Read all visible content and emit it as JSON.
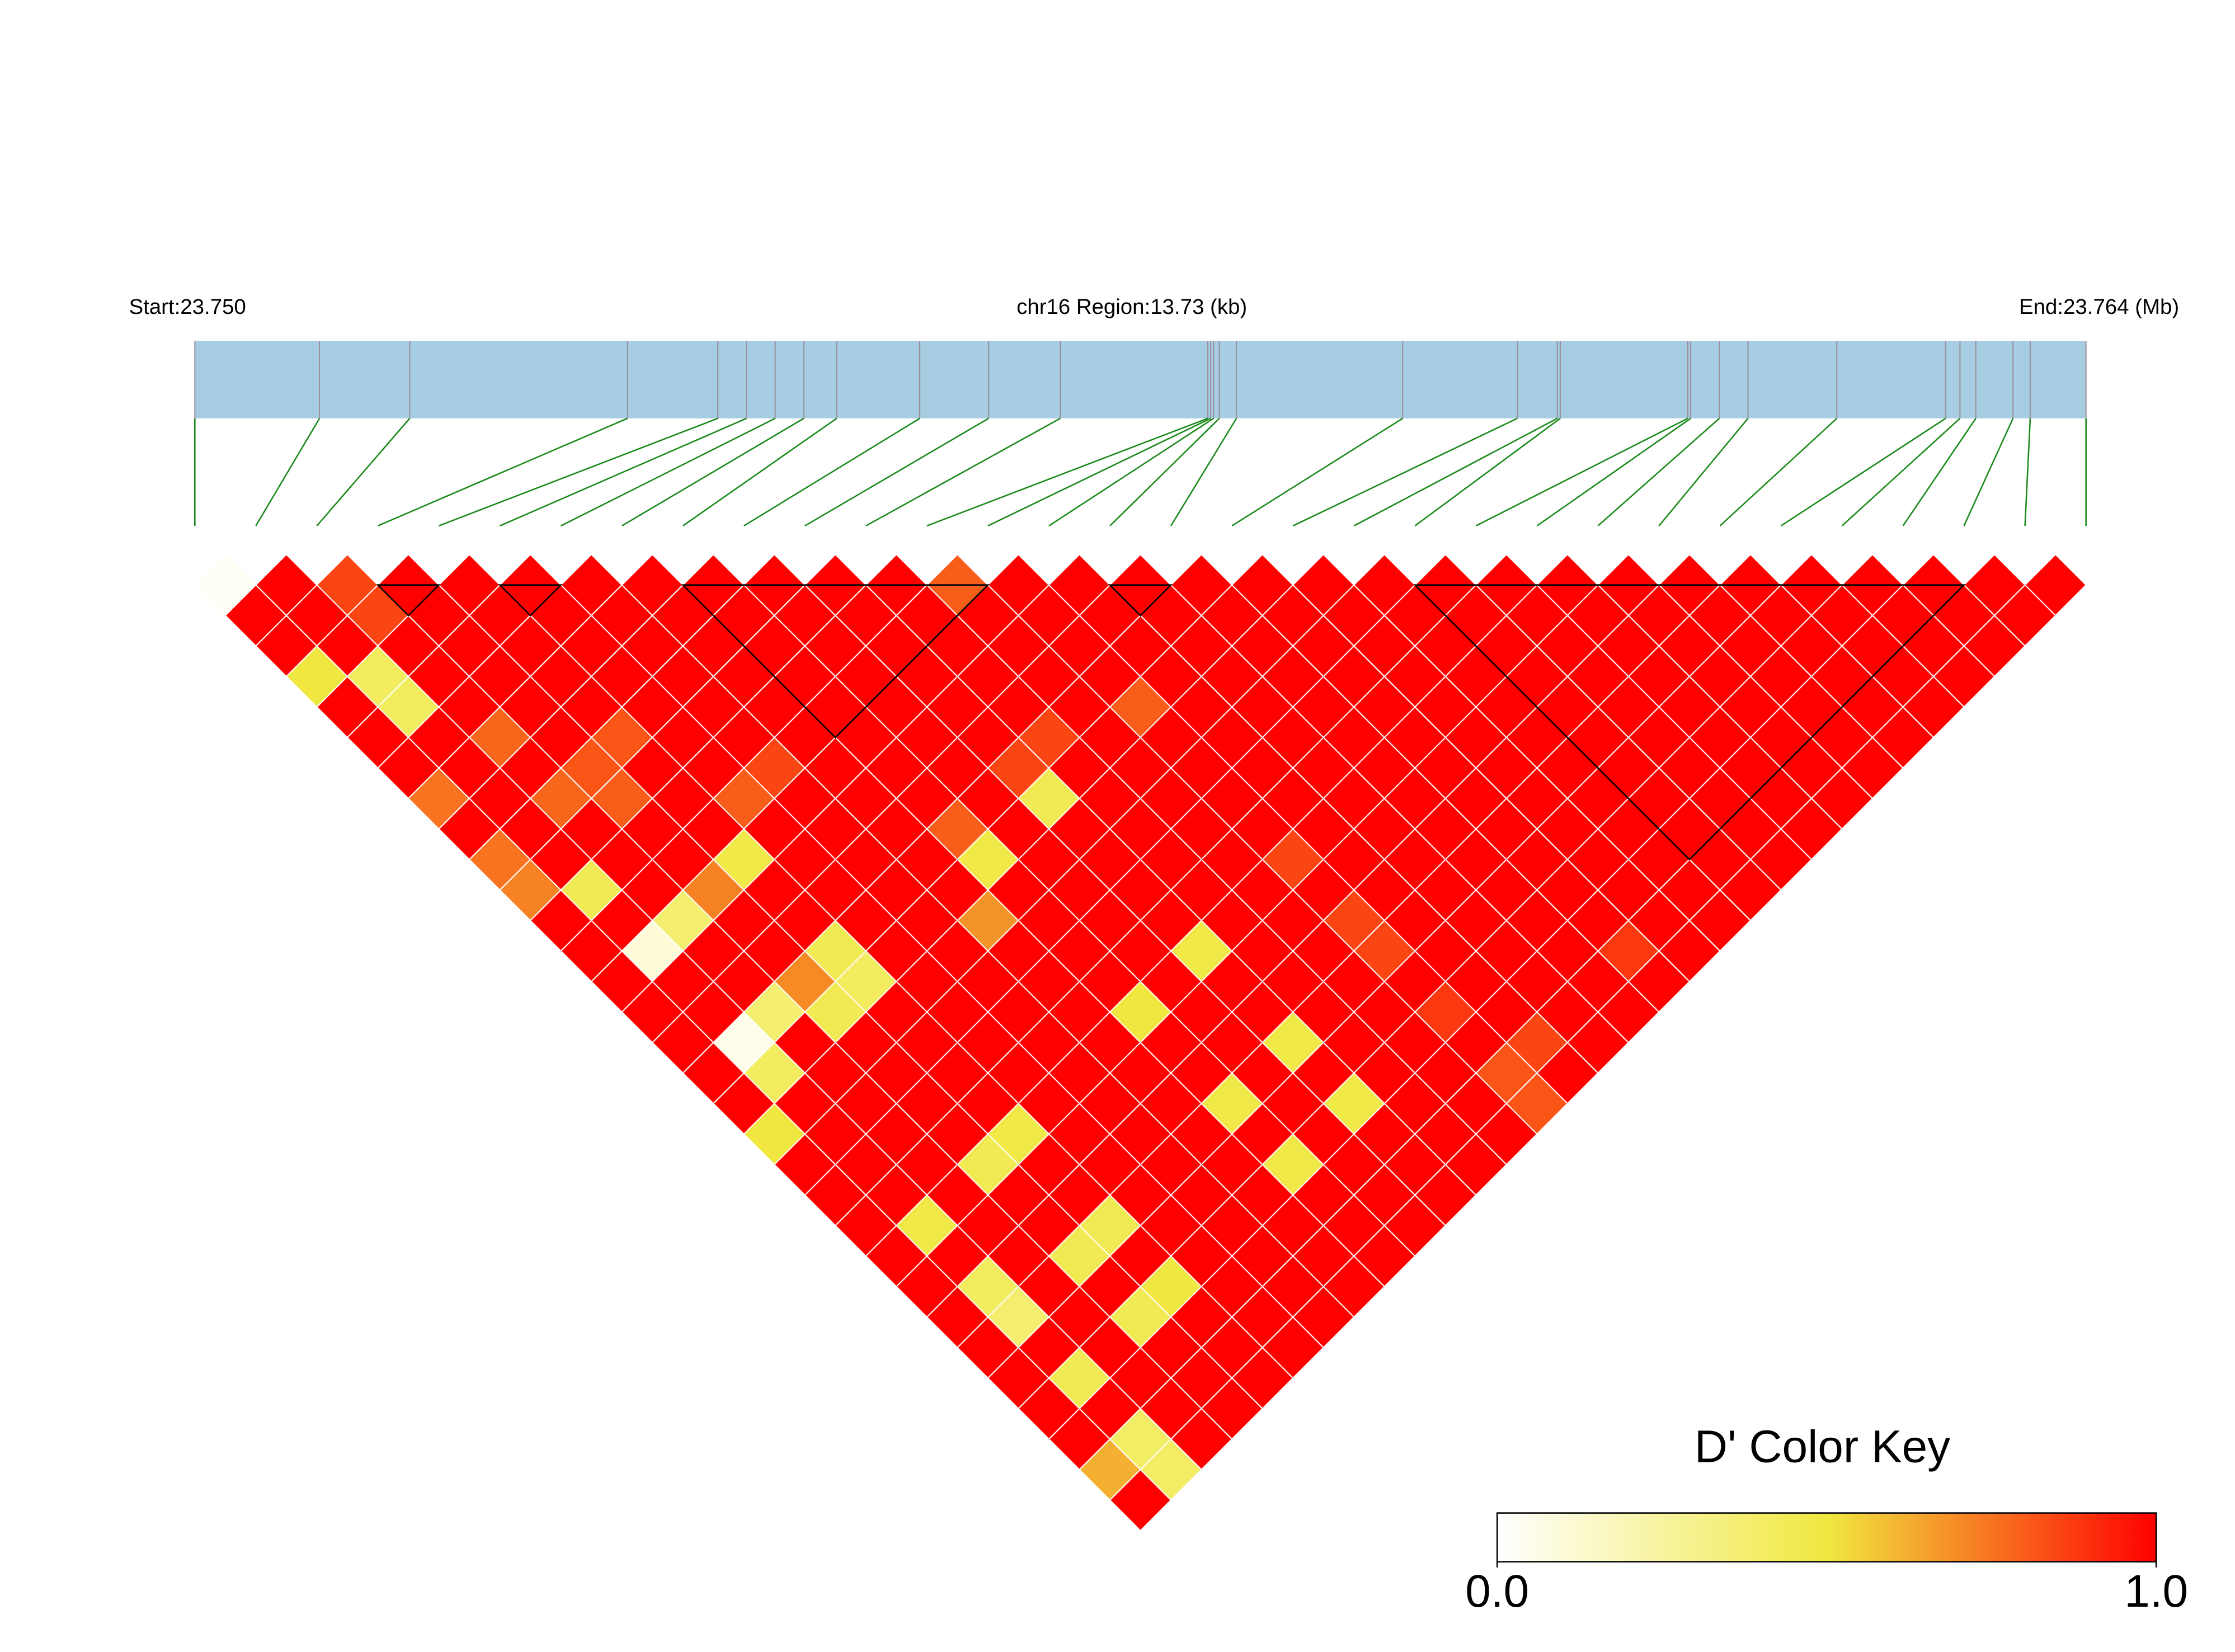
{
  "chart_data": {
    "type": "ld_heatmap",
    "start_label": "Start:23.750",
    "region_label": "chr16 Region:13.73 (kb)",
    "end_label": "End:23.764 (Mb)",
    "xlim": [
      0,
      13.73
    ],
    "snp_positions": [
      0,
      0.905,
      1.56,
      3.141,
      3.797,
      4.005,
      4.213,
      4.421,
      4.66,
      5.263,
      5.763,
      6.283,
      7.354,
      7.375,
      7.396,
      7.438,
      7.562,
      8.769,
      9.601,
      9.892,
      9.913,
      10.839,
      10.86,
      11.068,
      11.276,
      11.921,
      12.711,
      12.815,
      12.93,
      13.2,
      13.325,
      13.73
    ],
    "gene_color": "#a6cde2",
    "snp_line_color": "#9a8f9a",
    "link_color": "#1a8a1a",
    "dprime": [
      [
        0.03,
        1,
        0.85,
        1,
        1,
        1,
        1,
        1,
        1,
        1,
        1,
        1,
        0.8,
        1,
        1,
        1,
        1,
        1,
        1,
        1,
        1,
        1,
        1,
        1,
        1,
        1,
        1,
        1,
        1,
        1,
        1
      ],
      [
        1,
        1,
        0.85,
        1,
        1,
        1,
        1,
        1,
        1,
        1,
        1,
        1,
        1,
        1,
        1,
        1,
        1,
        1,
        1,
        1,
        1,
        1,
        1,
        1,
        1,
        1,
        1,
        1,
        1,
        1
      ],
      [
        1,
        1,
        1,
        1,
        1,
        1,
        1,
        1,
        1,
        1,
        1,
        1,
        1,
        1,
        1,
        1,
        1,
        1,
        1,
        1,
        1,
        1,
        1,
        1,
        1,
        1,
        1,
        1,
        1
      ],
      [
        0.5,
        0.42,
        1,
        1,
        1,
        1,
        1,
        1,
        1,
        1,
        1,
        1,
        1,
        1,
        1,
        1,
        1,
        1,
        1,
        1,
        1,
        1,
        1,
        1,
        1,
        1,
        1,
        1
      ],
      [
        1,
        0.42,
        1,
        1,
        1,
        1,
        1,
        1,
        1,
        1,
        1,
        1,
        1,
        0.8,
        1,
        1,
        1,
        1,
        1,
        1,
        1,
        1,
        1,
        1,
        1,
        1,
        1
      ],
      [
        1,
        1,
        0.78,
        1,
        0.82,
        1,
        1,
        1,
        1,
        1,
        1,
        0.85,
        1,
        1,
        1,
        1,
        1,
        1,
        1,
        1,
        1,
        1,
        1,
        1,
        1,
        1
      ],
      [
        1,
        1,
        1,
        0.82,
        1,
        1,
        0.85,
        1,
        1,
        1,
        0.85,
        1,
        1,
        1,
        1,
        1,
        1,
        1,
        1,
        1,
        1,
        1,
        1,
        1,
        1
      ],
      [
        0.75,
        1,
        0.78,
        0.8,
        1,
        0.8,
        1,
        1,
        1,
        1,
        0.45,
        1,
        1,
        1,
        1,
        1,
        1,
        1,
        1,
        1,
        1,
        1,
        1,
        1
      ],
      [
        1,
        1,
        1,
        1,
        1,
        1,
        1,
        1,
        0.8,
        1,
        1,
        1,
        1,
        1,
        1,
        1,
        1,
        1,
        1,
        1,
        1,
        1,
        1
      ],
      [
        0.75,
        1,
        1,
        1,
        0.48,
        1,
        1,
        1,
        0.48,
        1,
        1,
        1,
        1,
        0.85,
        1,
        1,
        1,
        1,
        1,
        1,
        1,
        1
      ],
      [
        0.72,
        0.45,
        1,
        0.72,
        1,
        1,
        1,
        1,
        1,
        1,
        1,
        1,
        1,
        1,
        1,
        1,
        1,
        1,
        1,
        1,
        1
      ],
      [
        1,
        1,
        0.38,
        1,
        1,
        1,
        1,
        0.68,
        1,
        1,
        1,
        1,
        1,
        0.85,
        1,
        1,
        1,
        1,
        1,
        1
      ],
      [
        1,
        0.1,
        1,
        1,
        0.45,
        1,
        1,
        1,
        1,
        1,
        0.48,
        1,
        1,
        0.85,
        1,
        1,
        1,
        0.88,
        1
      ],
      [
        1,
        1,
        1,
        0.7,
        0.42,
        1,
        1,
        1,
        1,
        1,
        1,
        1,
        1,
        1,
        1,
        1,
        1,
        1
      ],
      [
        1,
        1,
        0.38,
        0.45,
        1,
        1,
        1,
        1,
        0.5,
        1,
        1,
        1,
        1,
        0.88,
        1,
        1,
        1
      ],
      [
        1,
        0.05,
        1,
        1,
        1,
        1,
        1,
        1,
        1,
        1,
        0.48,
        1,
        1,
        1,
        0.85,
        1
      ],
      [
        1,
        0.42,
        1,
        1,
        1,
        1,
        1,
        1,
        1,
        1,
        1,
        1,
        1,
        0.82,
        1
      ],
      [
        1,
        1,
        1,
        1,
        1,
        1,
        1,
        1,
        0.48,
        1,
        0.48,
        1,
        1,
        0.82
      ],
      [
        0.5,
        1,
        1,
        1,
        0.48,
        1,
        1,
        1,
        1,
        1,
        1,
        1,
        1
      ],
      [
        1,
        1,
        1,
        0.45,
        1,
        1,
        1,
        1,
        0.48,
        1,
        1,
        1
      ],
      [
        1,
        1,
        1,
        1,
        1,
        1,
        1,
        1,
        1,
        1,
        1
      ],
      [
        1,
        0.48,
        1,
        1,
        0.45,
        1,
        1,
        1,
        1,
        1
      ],
      [
        1,
        1,
        1,
        0.45,
        1,
        1,
        1,
        1,
        1
      ],
      [
        1,
        0.42,
        1,
        1,
        0.5,
        1,
        1,
        1
      ],
      [
        1,
        0.38,
        1,
        0.45,
        1,
        1,
        1
      ],
      [
        1,
        1,
        1,
        1,
        1,
        1
      ],
      [
        1,
        0.45,
        1,
        1,
        1
      ],
      [
        1,
        1,
        1,
        1
      ],
      [
        1,
        0.4,
        1
      ],
      [
        0.62,
        0.4
      ],
      [
        1
      ]
    ],
    "blocks": [
      [
        3,
        4
      ],
      [
        5,
        6
      ],
      [
        8,
        13
      ],
      [
        15,
        16
      ],
      [
        20,
        29
      ]
    ],
    "color_key": {
      "title": "D' Color Key",
      "lim": [
        0,
        1
      ],
      "ticks": [
        {
          "value": 0,
          "label": "0.0"
        },
        {
          "value": 1,
          "label": "1.0"
        }
      ],
      "stops": [
        [
          0,
          "#ffffff"
        ],
        [
          0.5,
          "#f0e840"
        ],
        [
          1,
          "#ff0000"
        ]
      ]
    }
  }
}
